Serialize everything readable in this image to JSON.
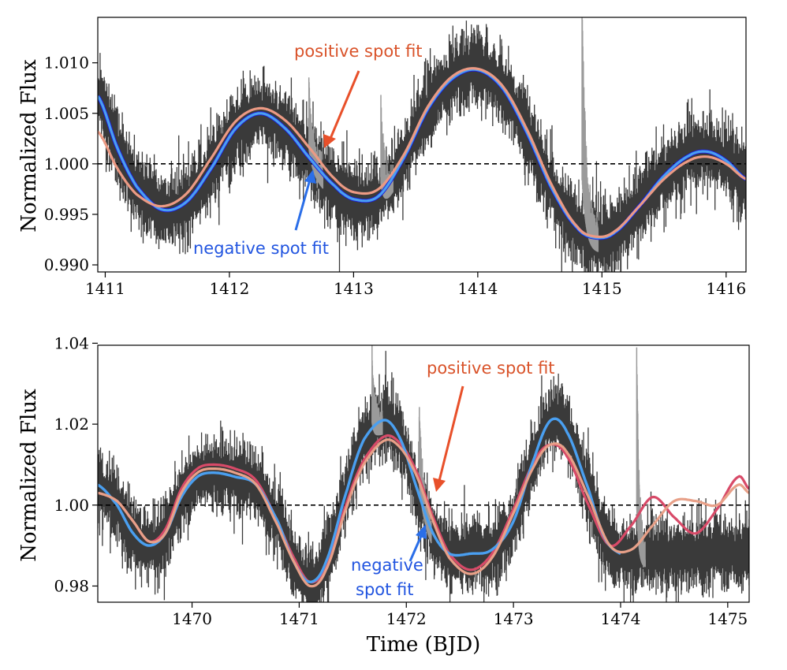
{
  "chart_data": [
    {
      "type": "line",
      "panel": "top",
      "title": "",
      "xlabel": "",
      "ylabel": "Normalized Flux",
      "xlim": [
        1410.94,
        1416.16
      ],
      "ylim": [
        0.9893,
        1.0145
      ],
      "xticks": [
        1411,
        1412,
        1413,
        1414,
        1415,
        1416
      ],
      "yticks": [
        0.99,
        0.995,
        1.0,
        1.005,
        1.01
      ],
      "ytick_decimals": 3,
      "reference_line": 1.0,
      "colors": {
        "data": "#3a3a3a",
        "flare": "#9a9a9a",
        "negative": "#4a9ff0",
        "negative_edge": "#1c1cdc",
        "positive": "#ec9a84",
        "negative_arrow": "#2a6ee8",
        "positive_arrow": "#e8502a",
        "reference": "#000000"
      },
      "noise": 0.0019,
      "flares": [
        {
          "t": 1412.64,
          "peak": 1.0085,
          "decay": 0.07
        },
        {
          "t": 1413.22,
          "peak": 1.0055,
          "decay": 0.06
        },
        {
          "t": 1414.84,
          "peak": 1.0155,
          "decay": 0.08
        }
      ],
      "series": [
        {
          "name": "negative spot fit",
          "x": [
            1410.94,
            1411.1,
            1411.25,
            1411.45,
            1411.65,
            1411.85,
            1412.05,
            1412.25,
            1412.45,
            1412.65,
            1412.85,
            1413.0,
            1413.2,
            1413.4,
            1413.6,
            1413.8,
            1414.0,
            1414.2,
            1414.4,
            1414.6,
            1414.8,
            1414.95,
            1415.1,
            1415.3,
            1415.5,
            1415.7,
            1415.85,
            1416.0,
            1416.16
          ],
          "y": [
            1.0067,
            1.0015,
            0.9978,
            0.9955,
            0.9962,
            0.9995,
            1.0035,
            1.005,
            1.0035,
            1.0005,
            0.9978,
            0.9965,
            0.9968,
            1.0005,
            1.0055,
            1.0085,
            1.0093,
            1.0075,
            1.003,
            0.9975,
            0.9937,
            0.9927,
            0.9932,
            0.9958,
            0.9988,
            1.0008,
            1.0012,
            1.0003,
            0.9985
          ]
        },
        {
          "name": "positive spot fit",
          "x": [
            1410.94,
            1411.1,
            1411.25,
            1411.45,
            1411.65,
            1411.85,
            1412.05,
            1412.25,
            1412.45,
            1412.65,
            1412.85,
            1413.0,
            1413.2,
            1413.4,
            1413.6,
            1413.8,
            1414.0,
            1414.2,
            1414.4,
            1414.6,
            1414.8,
            1414.95,
            1415.1,
            1415.3,
            1415.5,
            1415.7,
            1415.85,
            1416.0,
            1416.16
          ],
          "y": [
            1.0032,
            0.9995,
            0.997,
            0.9958,
            0.997,
            1.0005,
            1.0042,
            1.0055,
            1.0043,
            1.0015,
            0.9985,
            0.9972,
            0.9975,
            1.0008,
            1.0057,
            1.0087,
            1.0094,
            1.0077,
            1.0033,
            0.9978,
            0.9938,
            0.9928,
            0.9933,
            0.9958,
            0.9985,
            1.0003,
            1.0007,
            1.0,
            0.9985
          ]
        }
      ],
      "annotations": [
        {
          "text": "positive spot fit",
          "color": "#d9532a"
        },
        {
          "text": "negative spot fit",
          "color": "#2255e0"
        }
      ]
    },
    {
      "type": "line",
      "panel": "bottom",
      "title": "",
      "xlabel": "Time (BJD)",
      "ylabel": "Normalized Flux",
      "xlim": [
        1469.12,
        1475.2
      ],
      "ylim": [
        0.976,
        1.0395
      ],
      "xticks": [
        1470,
        1471,
        1472,
        1473,
        1474,
        1475
      ],
      "yticks": [
        0.98,
        1.0,
        1.02,
        1.04
      ],
      "ytick_decimals": 2,
      "reference_line": 1.0,
      "colors": {
        "data": "#3a3a3a",
        "flare": "#9a9a9a",
        "negative": "#4a9ff0",
        "positive": "#e8a088",
        "positive_dark": "#d84a68",
        "negative_arrow": "#2a6ee8",
        "positive_arrow": "#e8502a",
        "reference": "#000000"
      },
      "noise": 0.0045,
      "flares": [
        {
          "t": 1471.68,
          "peak": 1.0355,
          "decay": 0.06
        },
        {
          "t": 1472.12,
          "peak": 1.0235,
          "decay": 0.07
        },
        {
          "t": 1474.15,
          "peak": 1.0395,
          "decay": 0.05
        }
      ],
      "series": [
        {
          "name": "negative spot fit",
          "x": [
            1469.12,
            1469.3,
            1469.45,
            1469.6,
            1469.75,
            1469.9,
            1470.05,
            1470.2,
            1470.4,
            1470.6,
            1470.8,
            1470.95,
            1471.1,
            1471.25,
            1471.45,
            1471.6,
            1471.8,
            1471.95,
            1472.1,
            1472.25,
            1472.4,
            1472.6,
            1472.8,
            1473.0,
            1473.2,
            1473.35,
            1473.5,
            1473.7,
            1473.85,
            1474.0
          ],
          "y": [
            1.005,
            1.0,
            0.993,
            0.99,
            0.993,
            1.002,
            1.007,
            1.008,
            1.007,
            1.005,
            0.996,
            0.986,
            0.981,
            0.986,
            1.004,
            1.016,
            1.021,
            1.016,
            1.004,
            0.993,
            0.988,
            0.988,
            0.989,
            0.996,
            1.012,
            1.021,
            1.018,
            1.004,
            0.992,
            0.988
          ]
        },
        {
          "name": "positive spot fit",
          "x": [
            1469.12,
            1469.3,
            1469.45,
            1469.6,
            1469.75,
            1469.9,
            1470.05,
            1470.2,
            1470.4,
            1470.6,
            1470.8,
            1470.95,
            1471.1,
            1471.25,
            1471.45,
            1471.6,
            1471.8,
            1471.95,
            1472.1,
            1472.25,
            1472.4,
            1472.6,
            1472.8,
            1473.0,
            1473.2,
            1473.35,
            1473.5,
            1473.7,
            1473.9,
            1474.1,
            1474.3,
            1474.5,
            1474.7,
            1474.9,
            1475.1,
            1475.2
          ],
          "y": [
            1.003,
            1.001,
            0.996,
            0.991,
            0.993,
            1.003,
            1.008,
            1.009,
            1.008,
            1.005,
            0.995,
            0.986,
            0.98,
            0.984,
            1.0,
            1.01,
            1.016,
            1.014,
            1.007,
            0.996,
            0.987,
            0.983,
            0.987,
            0.998,
            1.01,
            1.015,
            1.013,
            1.002,
            0.99,
            0.989,
            0.995,
            1.001,
            1.001,
            1.0,
            1.005,
            1.003
          ]
        },
        {
          "name": "positive spot fit (alt)",
          "x": [
            1469.12,
            1469.3,
            1469.45,
            1469.6,
            1469.75,
            1469.9,
            1470.05,
            1470.2,
            1470.4,
            1470.6,
            1470.8,
            1470.95,
            1471.1,
            1471.25,
            1471.45,
            1471.6,
            1471.8,
            1471.95,
            1472.1,
            1472.25,
            1472.4,
            1472.6,
            1472.8,
            1473.0,
            1473.2,
            1473.35,
            1473.5,
            1473.7,
            1473.9,
            1474.1,
            1474.3,
            1474.5,
            1474.7,
            1474.9,
            1475.1,
            1475.2
          ],
          "y": [
            1.003,
            1.001,
            0.996,
            0.991,
            0.994,
            1.004,
            1.009,
            1.01,
            1.009,
            1.006,
            0.996,
            0.987,
            0.981,
            0.985,
            1.001,
            1.011,
            1.017,
            1.015,
            1.008,
            0.997,
            0.988,
            0.984,
            0.988,
            0.999,
            1.011,
            1.015,
            1.012,
            1.0,
            0.99,
            0.995,
            1.002,
            0.997,
            0.993,
            0.999,
            1.007,
            1.004
          ]
        }
      ],
      "annotations": [
        {
          "text": "positive spot fit",
          "color": "#d9532a"
        },
        {
          "text": "negative",
          "color": "#2255e0"
        },
        {
          "text": "spot fit",
          "color": "#2255e0"
        }
      ]
    }
  ]
}
